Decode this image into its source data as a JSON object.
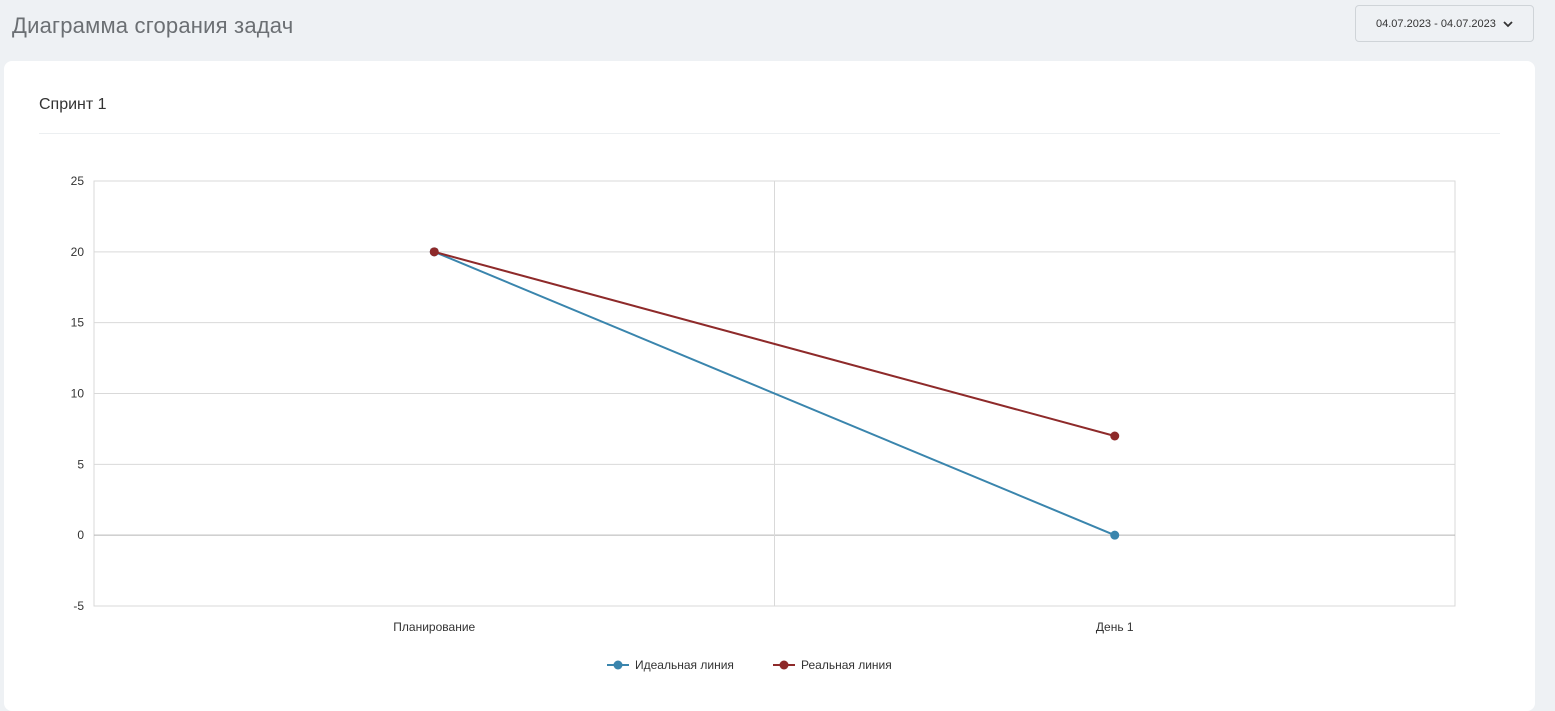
{
  "header": {
    "title": "Диаграмма сгорания задач",
    "date_range": "04.07.2023 - 04.07.2023"
  },
  "card": {
    "title": "Спринт 1"
  },
  "colors": {
    "ideal": "#3a85ad",
    "real": "#8e2a2a",
    "grid": "#d9d9d9"
  },
  "chart_data": {
    "type": "line",
    "categories": [
      "Планирование",
      "День 1"
    ],
    "series": [
      {
        "name": "Идеальная линия",
        "values": [
          20,
          0
        ]
      },
      {
        "name": "Реальная линия",
        "values": [
          20,
          7
        ]
      }
    ],
    "ylim": [
      -5,
      25
    ],
    "yticks": [
      25,
      20,
      15,
      10,
      5,
      0,
      -5
    ],
    "grid": true,
    "legend": "bottom-center"
  }
}
